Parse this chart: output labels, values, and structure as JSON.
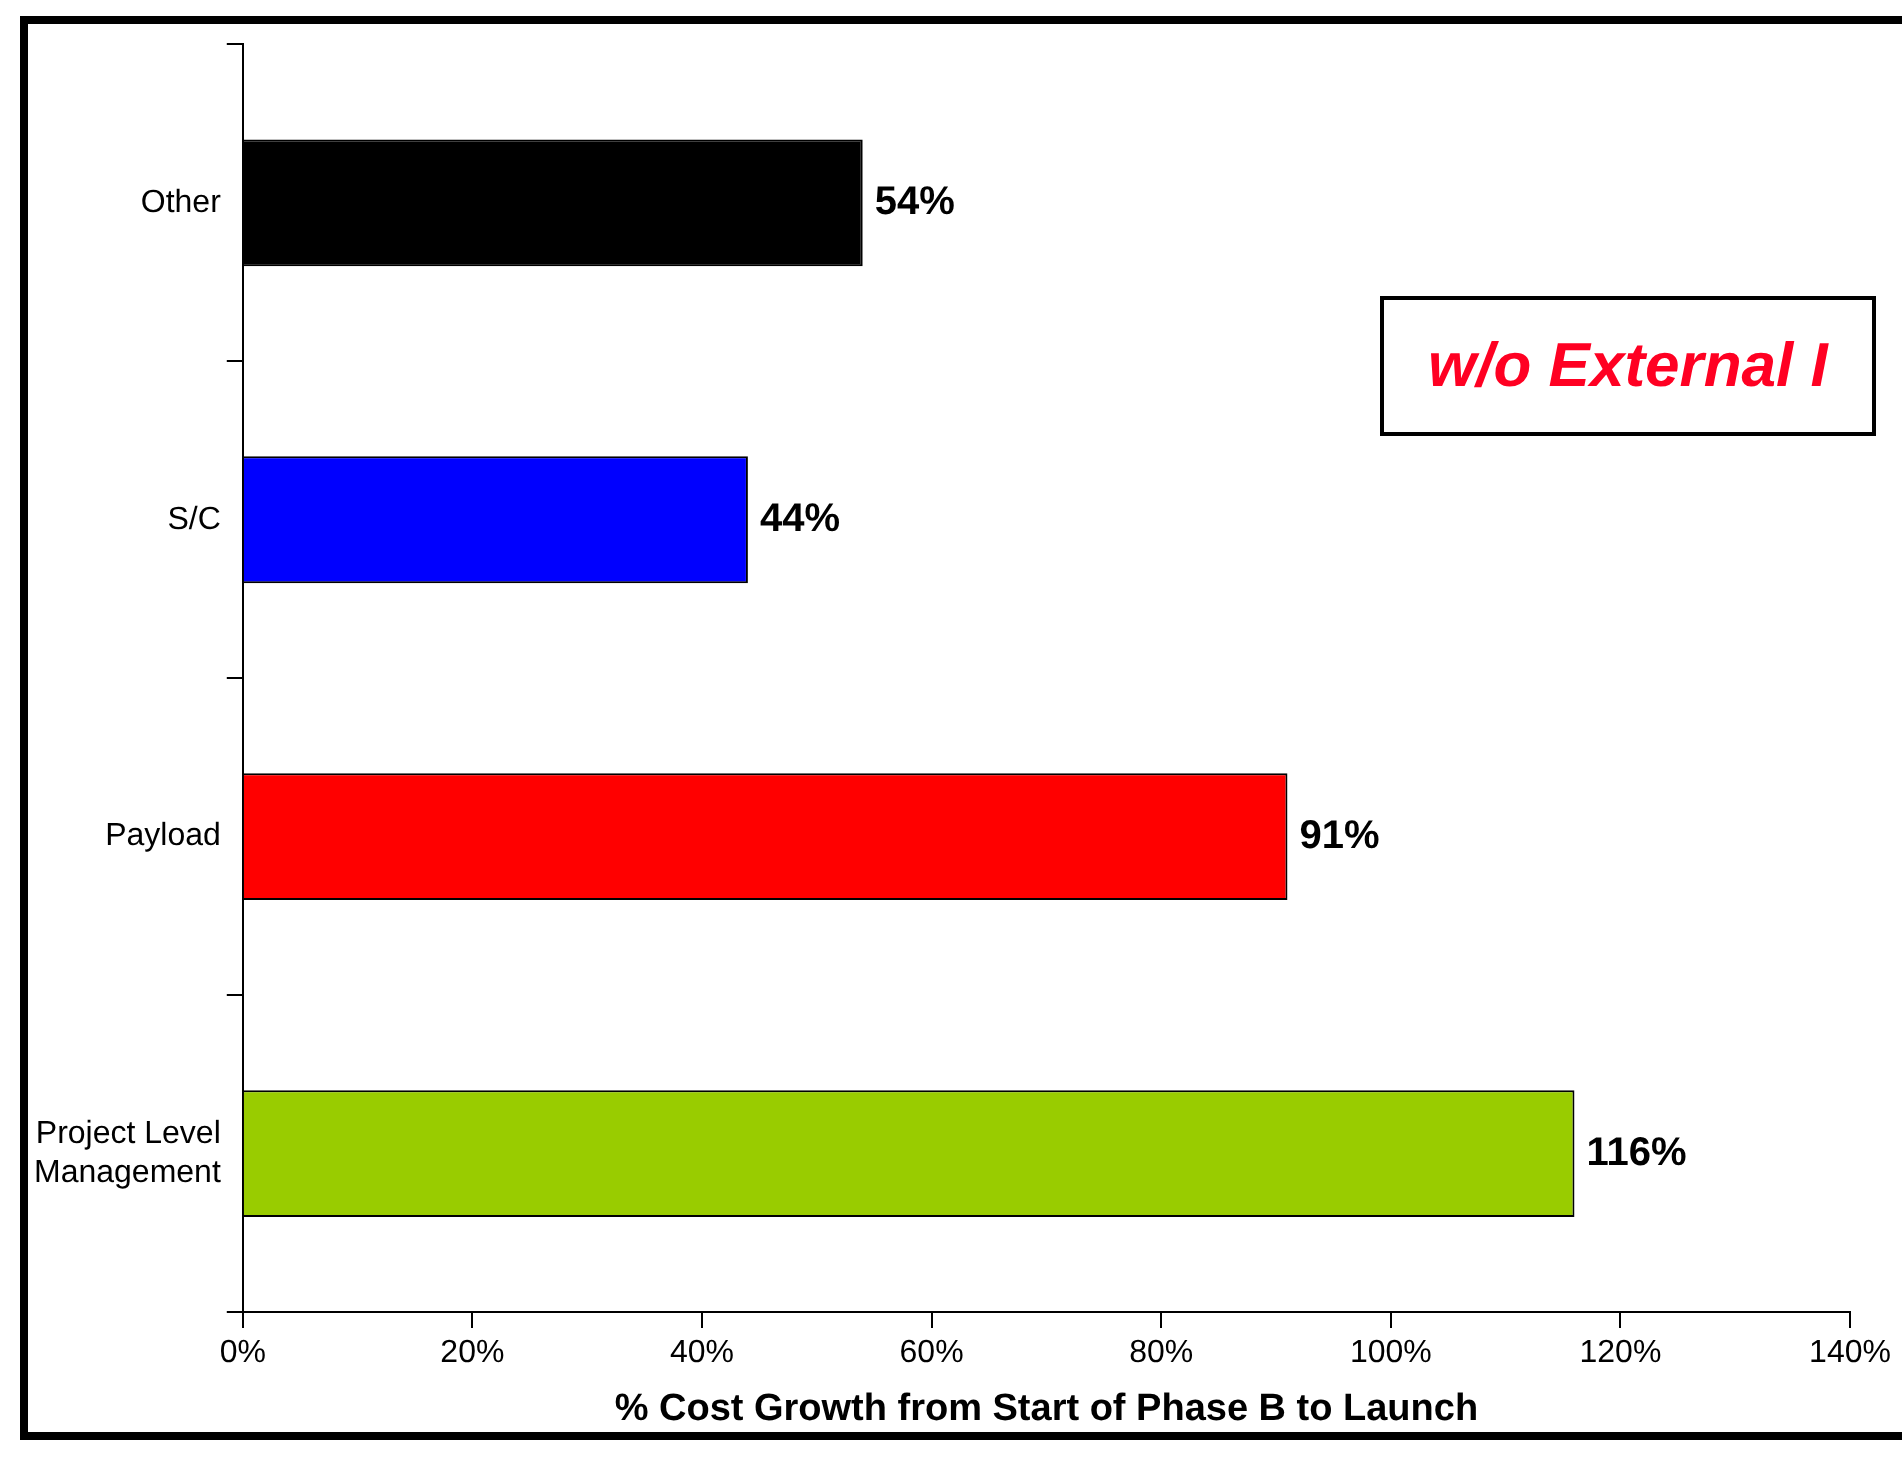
{
  "chart_data": {
    "type": "bar",
    "orientation": "horizontal",
    "xlabel": "% Cost Growth from Start of Phase B to Launch",
    "categories": [
      "Other",
      "S/C",
      "Payload",
      "Project Level\nManagement"
    ],
    "values": [
      54,
      44,
      91,
      116
    ],
    "colors": [
      "#000000",
      "#0000ff",
      "#ff0000",
      "#99cc00"
    ],
    "value_labels": [
      "54%",
      "44%",
      "91%",
      "116%"
    ],
    "xlim": [
      0,
      140
    ],
    "xticks": [
      {
        "value": 0,
        "label": "0%"
      },
      {
        "value": 20,
        "label": "20%"
      },
      {
        "value": 40,
        "label": "40%"
      },
      {
        "value": 60,
        "label": "60%"
      },
      {
        "value": 80,
        "label": "80%"
      },
      {
        "value": 100,
        "label": "100%"
      },
      {
        "value": 120,
        "label": "120%"
      },
      {
        "value": 140,
        "label": "140%"
      }
    ],
    "grid": false,
    "legend": false,
    "annotations": [
      "w/o External I"
    ]
  }
}
